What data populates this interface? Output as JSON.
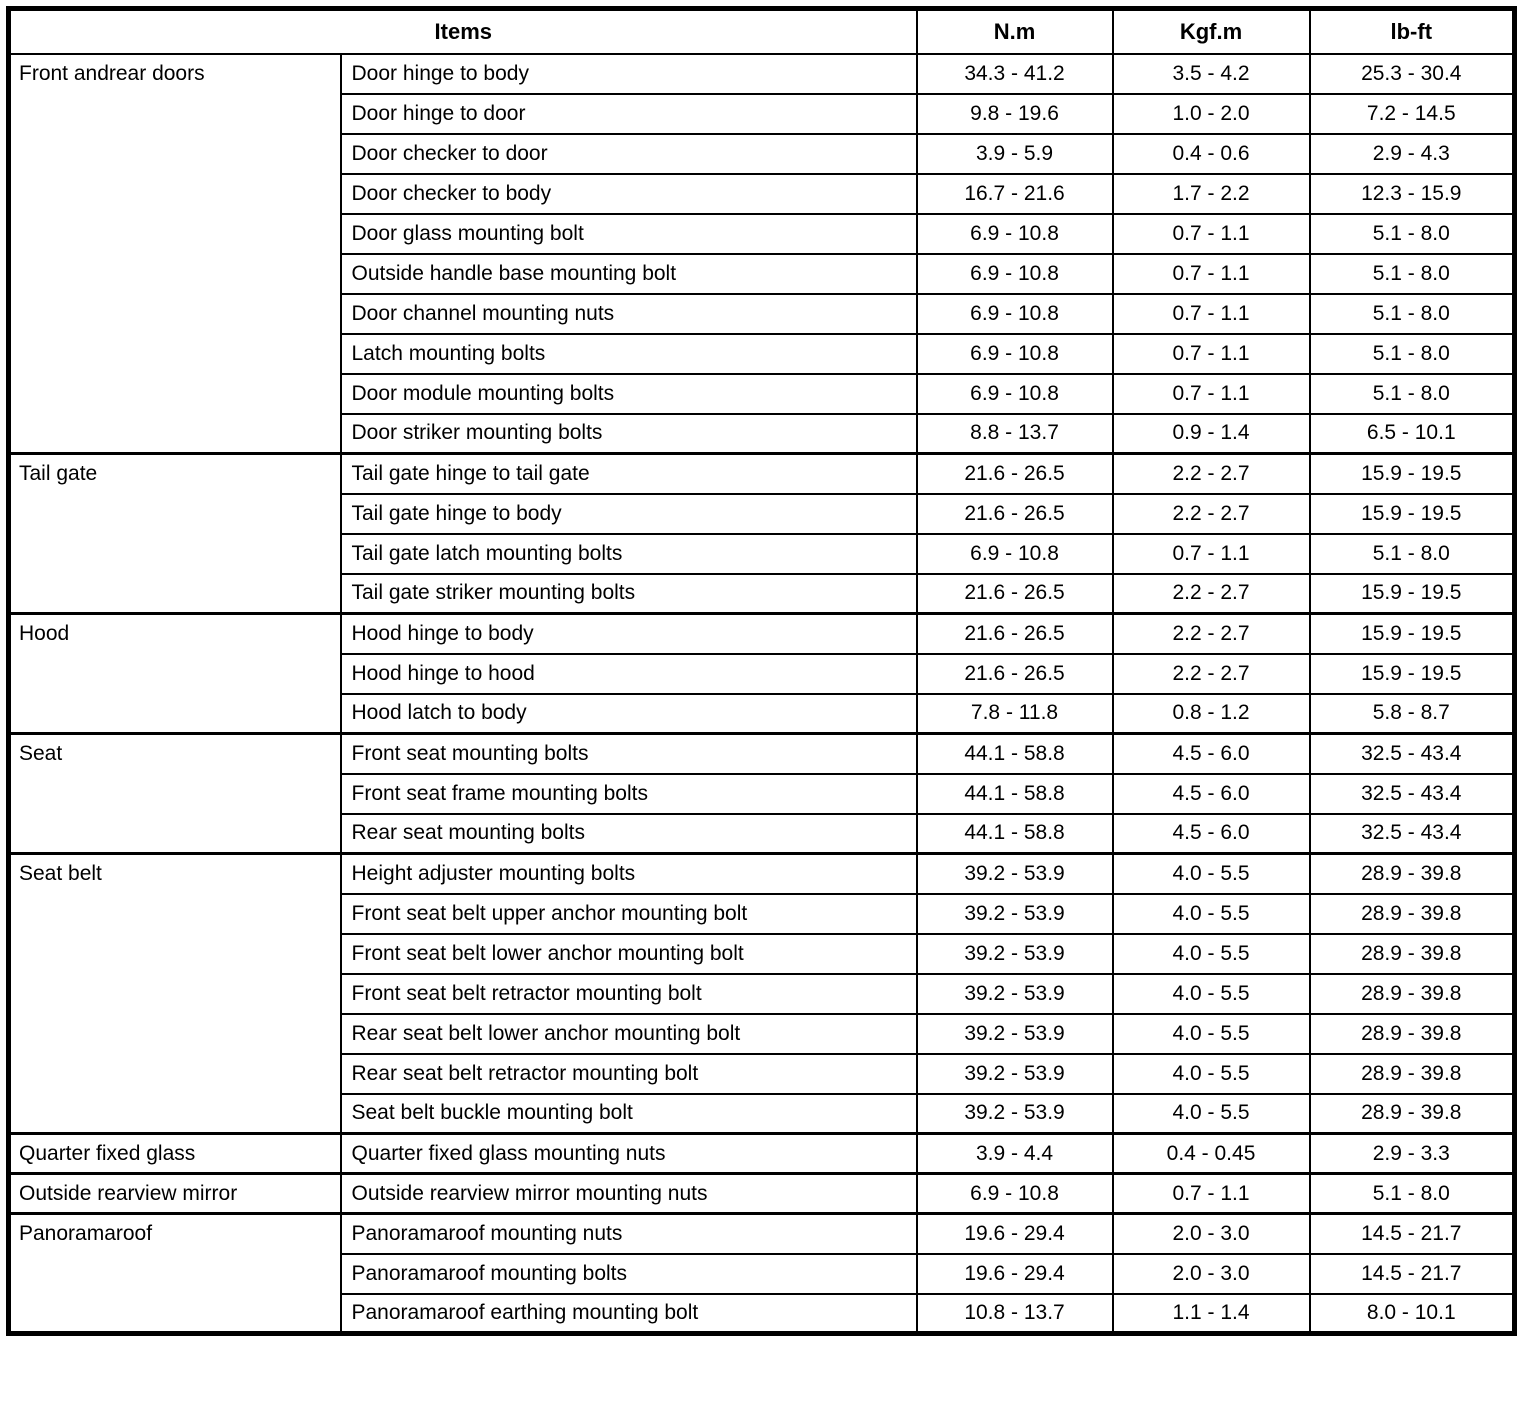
{
  "table": {
    "header": {
      "items": "Items",
      "nm": "N.m",
      "kgfm": "Kgf.m",
      "lbft": "lb-ft"
    },
    "groups": [
      {
        "category": "Front andrear doors",
        "rows": [
          {
            "item": "Door hinge to body",
            "nm": "34.3 - 41.2",
            "kgfm": "3.5 - 4.2",
            "lbft": "25.3 - 30.4"
          },
          {
            "item": "Door hinge to door",
            "nm": "9.8 - 19.6",
            "kgfm": "1.0 - 2.0",
            "lbft": "7.2 - 14.5"
          },
          {
            "item": "Door checker to door",
            "nm": "3.9 - 5.9",
            "kgfm": "0.4 - 0.6",
            "lbft": "2.9 - 4.3"
          },
          {
            "item": "Door checker to body",
            "nm": "16.7 - 21.6",
            "kgfm": "1.7 - 2.2",
            "lbft": "12.3 - 15.9"
          },
          {
            "item": "Door glass mounting bolt",
            "nm": "6.9 - 10.8",
            "kgfm": "0.7 - 1.1",
            "lbft": "5.1 - 8.0"
          },
          {
            "item": "Outside handle base mounting bolt",
            "nm": "6.9 - 10.8",
            "kgfm": "0.7 - 1.1",
            "lbft": "5.1 - 8.0"
          },
          {
            "item": "Door channel mounting nuts",
            "nm": "6.9 - 10.8",
            "kgfm": "0.7 - 1.1",
            "lbft": "5.1 - 8.0"
          },
          {
            "item": "Latch mounting bolts",
            "nm": "6.9 - 10.8",
            "kgfm": "0.7 - 1.1",
            "lbft": "5.1 - 8.0"
          },
          {
            "item": "Door module mounting bolts",
            "nm": "6.9 - 10.8",
            "kgfm": "0.7 - 1.1",
            "lbft": "5.1 - 8.0"
          },
          {
            "item": "Door striker mounting bolts",
            "nm": "8.8 - 13.7",
            "kgfm": "0.9 - 1.4",
            "lbft": "6.5 - 10.1"
          }
        ]
      },
      {
        "category": "Tail gate",
        "rows": [
          {
            "item": "Tail gate hinge to tail gate",
            "nm": "21.6 - 26.5",
            "kgfm": "2.2 - 2.7",
            "lbft": "15.9 - 19.5"
          },
          {
            "item": "Tail gate hinge to body",
            "nm": "21.6 - 26.5",
            "kgfm": "2.2 - 2.7",
            "lbft": "15.9 - 19.5"
          },
          {
            "item": "Tail gate latch mounting bolts",
            "nm": "6.9 - 10.8",
            "kgfm": "0.7 - 1.1",
            "lbft": "5.1 - 8.0"
          },
          {
            "item": "Tail gate striker mounting bolts",
            "nm": "21.6 - 26.5",
            "kgfm": "2.2 - 2.7",
            "lbft": "15.9 - 19.5"
          }
        ]
      },
      {
        "category": "Hood",
        "rows": [
          {
            "item": "Hood hinge to body",
            "nm": "21.6 - 26.5",
            "kgfm": "2.2 - 2.7",
            "lbft": "15.9 - 19.5"
          },
          {
            "item": "Hood hinge to hood",
            "nm": "21.6 - 26.5",
            "kgfm": "2.2 - 2.7",
            "lbft": "15.9 - 19.5"
          },
          {
            "item": "Hood latch to body",
            "nm": "7.8 - 11.8",
            "kgfm": "0.8 - 1.2",
            "lbft": "5.8 - 8.7"
          }
        ]
      },
      {
        "category": "Seat",
        "rows": [
          {
            "item": "Front seat mounting bolts",
            "nm": "44.1 - 58.8",
            "kgfm": "4.5 - 6.0",
            "lbft": "32.5 - 43.4"
          },
          {
            "item": "Front seat frame mounting bolts",
            "nm": "44.1 - 58.8",
            "kgfm": "4.5 - 6.0",
            "lbft": "32.5 - 43.4"
          },
          {
            "item": "Rear seat mounting bolts",
            "nm": "44.1 - 58.8",
            "kgfm": "4.5 - 6.0",
            "lbft": "32.5 - 43.4"
          }
        ]
      },
      {
        "category": "Seat belt",
        "rows": [
          {
            "item": "Height adjuster mounting bolts",
            "nm": "39.2 - 53.9",
            "kgfm": "4.0 - 5.5",
            "lbft": "28.9 - 39.8"
          },
          {
            "item": "Front seat belt upper anchor mounting bolt",
            "nm": "39.2 - 53.9",
            "kgfm": "4.0 - 5.5",
            "lbft": "28.9 - 39.8"
          },
          {
            "item": "Front seat belt lower anchor mounting bolt",
            "nm": "39.2 - 53.9",
            "kgfm": "4.0 - 5.5",
            "lbft": "28.9 - 39.8"
          },
          {
            "item": "Front seat belt retractor mounting bolt",
            "nm": "39.2 - 53.9",
            "kgfm": "4.0 - 5.5",
            "lbft": "28.9 - 39.8"
          },
          {
            "item": "Rear seat belt lower anchor mounting bolt",
            "nm": "39.2 - 53.9",
            "kgfm": "4.0 - 5.5",
            "lbft": "28.9 - 39.8"
          },
          {
            "item": "Rear seat belt retractor mounting bolt",
            "nm": "39.2 - 53.9",
            "kgfm": "4.0 - 5.5",
            "lbft": "28.9 - 39.8"
          },
          {
            "item": "Seat belt buckle mounting bolt",
            "nm": "39.2 - 53.9",
            "kgfm": "4.0 - 5.5",
            "lbft": "28.9 - 39.8"
          }
        ]
      },
      {
        "category": "Quarter fixed glass",
        "rows": [
          {
            "item": "Quarter fixed glass mounting nuts",
            "nm": "3.9 - 4.4",
            "kgfm": "0.4 - 0.45",
            "lbft": "2.9 - 3.3"
          }
        ]
      },
      {
        "category": "Outside rearview mirror",
        "rows": [
          {
            "item": "Outside rearview mirror mounting nuts",
            "nm": "6.9 - 10.8",
            "kgfm": "0.7 - 1.1",
            "lbft": "5.1 - 8.0"
          }
        ]
      },
      {
        "category": "Panoramaroof",
        "rows": [
          {
            "item": "Panoramaroof mounting nuts",
            "nm": "19.6 - 29.4",
            "kgfm": "2.0 - 3.0",
            "lbft": "14.5 - 21.7"
          },
          {
            "item": "Panoramaroof mounting bolts",
            "nm": "19.6 - 29.4",
            "kgfm": "2.0 - 3.0",
            "lbft": "14.5 - 21.7"
          },
          {
            "item": "Panoramaroof earthing mounting bolt",
            "nm": "10.8 - 13.7",
            "kgfm": "1.1 - 1.4",
            "lbft": "8.0 - 10.1"
          }
        ]
      }
    ]
  }
}
